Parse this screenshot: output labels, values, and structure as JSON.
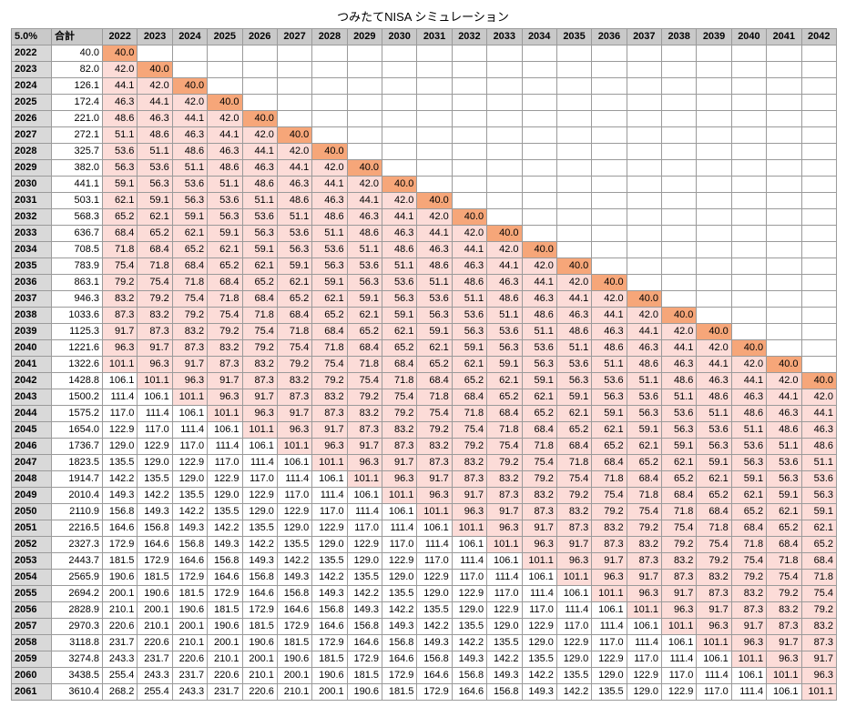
{
  "title": "つみたてNISA シミュレーション",
  "table": {
    "corner": "5.0%",
    "total_header": "合計",
    "columns": [
      "2022",
      "2023",
      "2024",
      "2025",
      "2026",
      "2027",
      "2028",
      "2029",
      "2030",
      "2031",
      "2032",
      "2033",
      "2034",
      "2035",
      "2036",
      "2037",
      "2038",
      "2039",
      "2040",
      "2041",
      "2042"
    ],
    "rows": [
      {
        "year": "2022",
        "total": "40.0",
        "cells": [
          "40.0"
        ]
      },
      {
        "year": "2023",
        "total": "82.0",
        "cells": [
          "42.0",
          "40.0"
        ]
      },
      {
        "year": "2024",
        "total": "126.1",
        "cells": [
          "44.1",
          "42.0",
          "40.0"
        ]
      },
      {
        "year": "2025",
        "total": "172.4",
        "cells": [
          "46.3",
          "44.1",
          "42.0",
          "40.0"
        ]
      },
      {
        "year": "2026",
        "total": "221.0",
        "cells": [
          "48.6",
          "46.3",
          "44.1",
          "42.0",
          "40.0"
        ]
      },
      {
        "year": "2027",
        "total": "272.1",
        "cells": [
          "51.1",
          "48.6",
          "46.3",
          "44.1",
          "42.0",
          "40.0"
        ]
      },
      {
        "year": "2028",
        "total": "325.7",
        "cells": [
          "53.6",
          "51.1",
          "48.6",
          "46.3",
          "44.1",
          "42.0",
          "40.0"
        ]
      },
      {
        "year": "2029",
        "total": "382.0",
        "cells": [
          "56.3",
          "53.6",
          "51.1",
          "48.6",
          "46.3",
          "44.1",
          "42.0",
          "40.0"
        ]
      },
      {
        "year": "2030",
        "total": "441.1",
        "cells": [
          "59.1",
          "56.3",
          "53.6",
          "51.1",
          "48.6",
          "46.3",
          "44.1",
          "42.0",
          "40.0"
        ]
      },
      {
        "year": "2031",
        "total": "503.1",
        "cells": [
          "62.1",
          "59.1",
          "56.3",
          "53.6",
          "51.1",
          "48.6",
          "46.3",
          "44.1",
          "42.0",
          "40.0"
        ]
      },
      {
        "year": "2032",
        "total": "568.3",
        "cells": [
          "65.2",
          "62.1",
          "59.1",
          "56.3",
          "53.6",
          "51.1",
          "48.6",
          "46.3",
          "44.1",
          "42.0",
          "40.0"
        ]
      },
      {
        "year": "2033",
        "total": "636.7",
        "cells": [
          "68.4",
          "65.2",
          "62.1",
          "59.1",
          "56.3",
          "53.6",
          "51.1",
          "48.6",
          "46.3",
          "44.1",
          "42.0",
          "40.0"
        ]
      },
      {
        "year": "2034",
        "total": "708.5",
        "cells": [
          "71.8",
          "68.4",
          "65.2",
          "62.1",
          "59.1",
          "56.3",
          "53.6",
          "51.1",
          "48.6",
          "46.3",
          "44.1",
          "42.0",
          "40.0"
        ]
      },
      {
        "year": "2035",
        "total": "783.9",
        "cells": [
          "75.4",
          "71.8",
          "68.4",
          "65.2",
          "62.1",
          "59.1",
          "56.3",
          "53.6",
          "51.1",
          "48.6",
          "46.3",
          "44.1",
          "42.0",
          "40.0"
        ]
      },
      {
        "year": "2036",
        "total": "863.1",
        "cells": [
          "79.2",
          "75.4",
          "71.8",
          "68.4",
          "65.2",
          "62.1",
          "59.1",
          "56.3",
          "53.6",
          "51.1",
          "48.6",
          "46.3",
          "44.1",
          "42.0",
          "40.0"
        ]
      },
      {
        "year": "2037",
        "total": "946.3",
        "cells": [
          "83.2",
          "79.2",
          "75.4",
          "71.8",
          "68.4",
          "65.2",
          "62.1",
          "59.1",
          "56.3",
          "53.6",
          "51.1",
          "48.6",
          "46.3",
          "44.1",
          "42.0",
          "40.0"
        ]
      },
      {
        "year": "2038",
        "total": "1033.6",
        "cells": [
          "87.3",
          "83.2",
          "79.2",
          "75.4",
          "71.8",
          "68.4",
          "65.2",
          "62.1",
          "59.1",
          "56.3",
          "53.6",
          "51.1",
          "48.6",
          "46.3",
          "44.1",
          "42.0",
          "40.0"
        ]
      },
      {
        "year": "2039",
        "total": "1125.3",
        "cells": [
          "91.7",
          "87.3",
          "83.2",
          "79.2",
          "75.4",
          "71.8",
          "68.4",
          "65.2",
          "62.1",
          "59.1",
          "56.3",
          "53.6",
          "51.1",
          "48.6",
          "46.3",
          "44.1",
          "42.0",
          "40.0"
        ]
      },
      {
        "year": "2040",
        "total": "1221.6",
        "cells": [
          "96.3",
          "91.7",
          "87.3",
          "83.2",
          "79.2",
          "75.4",
          "71.8",
          "68.4",
          "65.2",
          "62.1",
          "59.1",
          "56.3",
          "53.6",
          "51.1",
          "48.6",
          "46.3",
          "44.1",
          "42.0",
          "40.0"
        ]
      },
      {
        "year": "2041",
        "total": "1322.6",
        "cells": [
          "101.1",
          "96.3",
          "91.7",
          "87.3",
          "83.2",
          "79.2",
          "75.4",
          "71.8",
          "68.4",
          "65.2",
          "62.1",
          "59.1",
          "56.3",
          "53.6",
          "51.1",
          "48.6",
          "46.3",
          "44.1",
          "42.0",
          "40.0"
        ]
      },
      {
        "year": "2042",
        "total": "1428.8",
        "cells": [
          "106.1",
          "101.1",
          "96.3",
          "91.7",
          "87.3",
          "83.2",
          "79.2",
          "75.4",
          "71.8",
          "68.4",
          "65.2",
          "62.1",
          "59.1",
          "56.3",
          "53.6",
          "51.1",
          "48.6",
          "46.3",
          "44.1",
          "42.0",
          "40.0"
        ]
      },
      {
        "year": "2043",
        "total": "1500.2",
        "cells": [
          "111.4",
          "106.1",
          "101.1",
          "96.3",
          "91.7",
          "87.3",
          "83.2",
          "79.2",
          "75.4",
          "71.8",
          "68.4",
          "65.2",
          "62.1",
          "59.1",
          "56.3",
          "53.6",
          "51.1",
          "48.6",
          "46.3",
          "44.1",
          "42.0"
        ]
      },
      {
        "year": "2044",
        "total": "1575.2",
        "cells": [
          "117.0",
          "111.4",
          "106.1",
          "101.1",
          "96.3",
          "91.7",
          "87.3",
          "83.2",
          "79.2",
          "75.4",
          "71.8",
          "68.4",
          "65.2",
          "62.1",
          "59.1",
          "56.3",
          "53.6",
          "51.1",
          "48.6",
          "46.3",
          "44.1"
        ]
      },
      {
        "year": "2045",
        "total": "1654.0",
        "cells": [
          "122.9",
          "117.0",
          "111.4",
          "106.1",
          "101.1",
          "96.3",
          "91.7",
          "87.3",
          "83.2",
          "79.2",
          "75.4",
          "71.8",
          "68.4",
          "65.2",
          "62.1",
          "59.1",
          "56.3",
          "53.6",
          "51.1",
          "48.6",
          "46.3"
        ]
      },
      {
        "year": "2046",
        "total": "1736.7",
        "cells": [
          "129.0",
          "122.9",
          "117.0",
          "111.4",
          "106.1",
          "101.1",
          "96.3",
          "91.7",
          "87.3",
          "83.2",
          "79.2",
          "75.4",
          "71.8",
          "68.4",
          "65.2",
          "62.1",
          "59.1",
          "56.3",
          "53.6",
          "51.1",
          "48.6"
        ]
      },
      {
        "year": "2047",
        "total": "1823.5",
        "cells": [
          "135.5",
          "129.0",
          "122.9",
          "117.0",
          "111.4",
          "106.1",
          "101.1",
          "96.3",
          "91.7",
          "87.3",
          "83.2",
          "79.2",
          "75.4",
          "71.8",
          "68.4",
          "65.2",
          "62.1",
          "59.1",
          "56.3",
          "53.6",
          "51.1"
        ]
      },
      {
        "year": "2048",
        "total": "1914.7",
        "cells": [
          "142.2",
          "135.5",
          "129.0",
          "122.9",
          "117.0",
          "111.4",
          "106.1",
          "101.1",
          "96.3",
          "91.7",
          "87.3",
          "83.2",
          "79.2",
          "75.4",
          "71.8",
          "68.4",
          "65.2",
          "62.1",
          "59.1",
          "56.3",
          "53.6"
        ]
      },
      {
        "year": "2049",
        "total": "2010.4",
        "cells": [
          "149.3",
          "142.2",
          "135.5",
          "129.0",
          "122.9",
          "117.0",
          "111.4",
          "106.1",
          "101.1",
          "96.3",
          "91.7",
          "87.3",
          "83.2",
          "79.2",
          "75.4",
          "71.8",
          "68.4",
          "65.2",
          "62.1",
          "59.1",
          "56.3"
        ]
      },
      {
        "year": "2050",
        "total": "2110.9",
        "cells": [
          "156.8",
          "149.3",
          "142.2",
          "135.5",
          "129.0",
          "122.9",
          "117.0",
          "111.4",
          "106.1",
          "101.1",
          "96.3",
          "91.7",
          "87.3",
          "83.2",
          "79.2",
          "75.4",
          "71.8",
          "68.4",
          "65.2",
          "62.1",
          "59.1"
        ]
      },
      {
        "year": "2051",
        "total": "2216.5",
        "cells": [
          "164.6",
          "156.8",
          "149.3",
          "142.2",
          "135.5",
          "129.0",
          "122.9",
          "117.0",
          "111.4",
          "106.1",
          "101.1",
          "96.3",
          "91.7",
          "87.3",
          "83.2",
          "79.2",
          "75.4",
          "71.8",
          "68.4",
          "65.2",
          "62.1"
        ]
      },
      {
        "year": "2052",
        "total": "2327.3",
        "cells": [
          "172.9",
          "164.6",
          "156.8",
          "149.3",
          "142.2",
          "135.5",
          "129.0",
          "122.9",
          "117.0",
          "111.4",
          "106.1",
          "101.1",
          "96.3",
          "91.7",
          "87.3",
          "83.2",
          "79.2",
          "75.4",
          "71.8",
          "68.4",
          "65.2"
        ]
      },
      {
        "year": "2053",
        "total": "2443.7",
        "cells": [
          "181.5",
          "172.9",
          "164.6",
          "156.8",
          "149.3",
          "142.2",
          "135.5",
          "129.0",
          "122.9",
          "117.0",
          "111.4",
          "106.1",
          "101.1",
          "96.3",
          "91.7",
          "87.3",
          "83.2",
          "79.2",
          "75.4",
          "71.8",
          "68.4"
        ]
      },
      {
        "year": "2054",
        "total": "2565.9",
        "cells": [
          "190.6",
          "181.5",
          "172.9",
          "164.6",
          "156.8",
          "149.3",
          "142.2",
          "135.5",
          "129.0",
          "122.9",
          "117.0",
          "111.4",
          "106.1",
          "101.1",
          "96.3",
          "91.7",
          "87.3",
          "83.2",
          "79.2",
          "75.4",
          "71.8"
        ]
      },
      {
        "year": "2055",
        "total": "2694.2",
        "cells": [
          "200.1",
          "190.6",
          "181.5",
          "172.9",
          "164.6",
          "156.8",
          "149.3",
          "142.2",
          "135.5",
          "129.0",
          "122.9",
          "117.0",
          "111.4",
          "106.1",
          "101.1",
          "96.3",
          "91.7",
          "87.3",
          "83.2",
          "79.2",
          "75.4"
        ]
      },
      {
        "year": "2056",
        "total": "2828.9",
        "cells": [
          "210.1",
          "200.1",
          "190.6",
          "181.5",
          "172.9",
          "164.6",
          "156.8",
          "149.3",
          "142.2",
          "135.5",
          "129.0",
          "122.9",
          "117.0",
          "111.4",
          "106.1",
          "101.1",
          "96.3",
          "91.7",
          "87.3",
          "83.2",
          "79.2"
        ]
      },
      {
        "year": "2057",
        "total": "2970.3",
        "cells": [
          "220.6",
          "210.1",
          "200.1",
          "190.6",
          "181.5",
          "172.9",
          "164.6",
          "156.8",
          "149.3",
          "142.2",
          "135.5",
          "129.0",
          "122.9",
          "117.0",
          "111.4",
          "106.1",
          "101.1",
          "96.3",
          "91.7",
          "87.3",
          "83.2"
        ]
      },
      {
        "year": "2058",
        "total": "3118.8",
        "cells": [
          "231.7",
          "220.6",
          "210.1",
          "200.1",
          "190.6",
          "181.5",
          "172.9",
          "164.6",
          "156.8",
          "149.3",
          "142.2",
          "135.5",
          "129.0",
          "122.9",
          "117.0",
          "111.4",
          "106.1",
          "101.1",
          "96.3",
          "91.7",
          "87.3"
        ]
      },
      {
        "year": "2059",
        "total": "3274.8",
        "cells": [
          "243.3",
          "231.7",
          "220.6",
          "210.1",
          "200.1",
          "190.6",
          "181.5",
          "172.9",
          "164.6",
          "156.8",
          "149.3",
          "142.2",
          "135.5",
          "129.0",
          "122.9",
          "117.0",
          "111.4",
          "106.1",
          "101.1",
          "96.3",
          "91.7"
        ]
      },
      {
        "year": "2060",
        "total": "3438.5",
        "cells": [
          "255.4",
          "243.3",
          "231.7",
          "220.6",
          "210.1",
          "200.1",
          "190.6",
          "181.5",
          "172.9",
          "164.6",
          "156.8",
          "149.3",
          "142.2",
          "135.5",
          "129.0",
          "122.9",
          "117.0",
          "111.4",
          "106.1",
          "101.1",
          "96.3"
        ]
      },
      {
        "year": "2061",
        "total": "3610.4",
        "cells": [
          "268.2",
          "255.4",
          "243.3",
          "231.7",
          "220.6",
          "210.1",
          "200.1",
          "190.6",
          "181.5",
          "172.9",
          "164.6",
          "156.8",
          "149.3",
          "142.2",
          "135.5",
          "129.0",
          "122.9",
          "117.0",
          "111.4",
          "106.1",
          "101.1"
        ]
      }
    ]
  }
}
